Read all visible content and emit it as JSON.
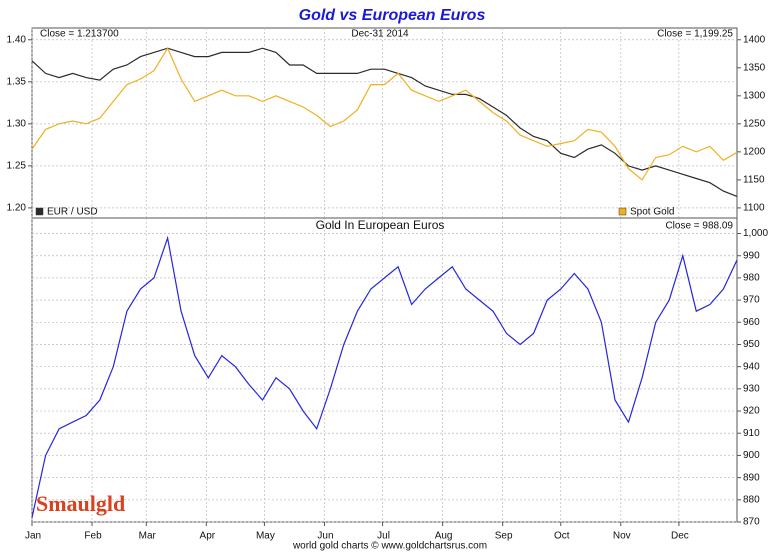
{
  "chart_data": [
    {
      "type": "line",
      "title": "Gold vs European Euros",
      "annotations": [
        "Close = 1.213700",
        "Dec-31 2014",
        "Close = 1,199.25"
      ],
      "x": [
        1,
        8,
        15,
        22,
        29,
        36,
        43,
        50,
        57,
        64,
        71,
        78,
        85,
        92,
        99,
        106,
        113,
        120,
        127,
        134,
        141,
        148,
        155,
        162,
        169,
        176,
        183,
        190,
        197,
        204,
        211,
        218,
        225,
        232,
        239,
        246,
        253,
        260,
        267,
        274,
        281,
        288,
        295,
        302,
        309,
        316,
        323,
        330,
        337,
        344,
        351,
        358,
        365
      ],
      "xlim": [
        1,
        365
      ],
      "ylim": [
        1.188,
        1.414
      ],
      "yticks": [
        {
          "value": 1.2,
          "label": "1.20"
        },
        1.25,
        {
          "value": 1.3,
          "label": "1.30"
        },
        1.35,
        {
          "value": 1.4,
          "label": "1.40"
        }
      ],
      "y2lim": [
        1082,
        1421
      ],
      "y2ticks": [
        1100,
        1150,
        1200,
        1250,
        1300,
        1350,
        1400
      ],
      "grid": true,
      "series": [
        {
          "name": "EUR / USD",
          "color": "#2b2b2b",
          "values": [
            1.375,
            1.36,
            1.355,
            1.36,
            1.355,
            1.352,
            1.365,
            1.37,
            1.38,
            1.385,
            1.39,
            1.385,
            1.38,
            1.38,
            1.385,
            1.385,
            1.385,
            1.39,
            1.385,
            1.37,
            1.37,
            1.36,
            1.36,
            1.36,
            1.36,
            1.365,
            1.365,
            1.36,
            1.355,
            1.345,
            1.34,
            1.335,
            1.335,
            1.33,
            1.32,
            1.31,
            1.295,
            1.285,
            1.28,
            1.265,
            1.26,
            1.27,
            1.275,
            1.265,
            1.25,
            1.245,
            1.25,
            1.245,
            1.24,
            1.235,
            1.23,
            1.22,
            1.2137
          ]
        },
        {
          "name": "Spot Gold",
          "color": "#f0b020",
          "axis": "y2",
          "values": [
            1205,
            1240,
            1250,
            1255,
            1250,
            1260,
            1290,
            1320,
            1330,
            1345,
            1385,
            1330,
            1290,
            1300,
            1310,
            1300,
            1300,
            1290,
            1300,
            1290,
            1280,
            1265,
            1245,
            1255,
            1275,
            1320,
            1320,
            1340,
            1310,
            1300,
            1290,
            1300,
            1310,
            1290,
            1270,
            1255,
            1230,
            1220,
            1210,
            1215,
            1220,
            1240,
            1235,
            1210,
            1170,
            1150,
            1190,
            1195,
            1210,
            1200,
            1210,
            1185,
            1199.25
          ]
        }
      ]
    },
    {
      "type": "line",
      "title": "Gold In European Euros",
      "annotations": [
        "Close = 988.09"
      ],
      "source": "world gold charts © www.goldchartsrus.com",
      "watermark": "Smaulgld",
      "x": [
        1,
        8,
        15,
        22,
        29,
        36,
        43,
        50,
        57,
        64,
        71,
        78,
        85,
        92,
        99,
        106,
        113,
        120,
        127,
        134,
        141,
        148,
        155,
        162,
        169,
        176,
        183,
        190,
        197,
        204,
        211,
        218,
        225,
        232,
        239,
        246,
        253,
        260,
        267,
        274,
        281,
        288,
        295,
        302,
        309,
        316,
        323,
        330,
        337,
        344,
        351,
        358,
        365
      ],
      "xlim": [
        1,
        365
      ],
      "xticks": [
        {
          "value": 1,
          "label": "Jan"
        },
        {
          "value": 32,
          "label": "Feb"
        },
        {
          "value": 60,
          "label": "Mar"
        },
        {
          "value": 91,
          "label": "Apr"
        },
        {
          "value": 121,
          "label": "May"
        },
        {
          "value": 152,
          "label": "Jun"
        },
        {
          "value": 182,
          "label": "Jul"
        },
        {
          "value": 213,
          "label": "Aug"
        },
        {
          "value": 244,
          "label": "Sep"
        },
        {
          "value": 274,
          "label": "Oct"
        },
        {
          "value": 305,
          "label": "Nov"
        },
        {
          "value": 335,
          "label": "Dec"
        }
      ],
      "ylim": [
        870,
        1007
      ],
      "yticks": [
        870,
        880,
        890,
        900,
        910,
        920,
        930,
        940,
        950,
        960,
        970,
        980,
        990,
        {
          "value": 1000,
          "label": "1,000"
        }
      ],
      "yaxis_position": "right",
      "grid": true,
      "series": [
        {
          "name": null,
          "color": "#2626e0",
          "values": [
            872,
            900,
            912,
            915,
            918,
            925,
            940,
            965,
            975,
            980,
            998,
            965,
            945,
            935,
            945,
            940,
            932,
            925,
            935,
            930,
            920,
            912,
            930,
            950,
            965,
            975,
            980,
            985,
            968,
            975,
            980,
            985,
            975,
            970,
            965,
            955,
            950,
            955,
            970,
            975,
            982,
            975,
            960,
            925,
            915,
            935,
            960,
            970,
            990,
            965,
            968,
            975,
            988.09
          ]
        }
      ]
    }
  ]
}
